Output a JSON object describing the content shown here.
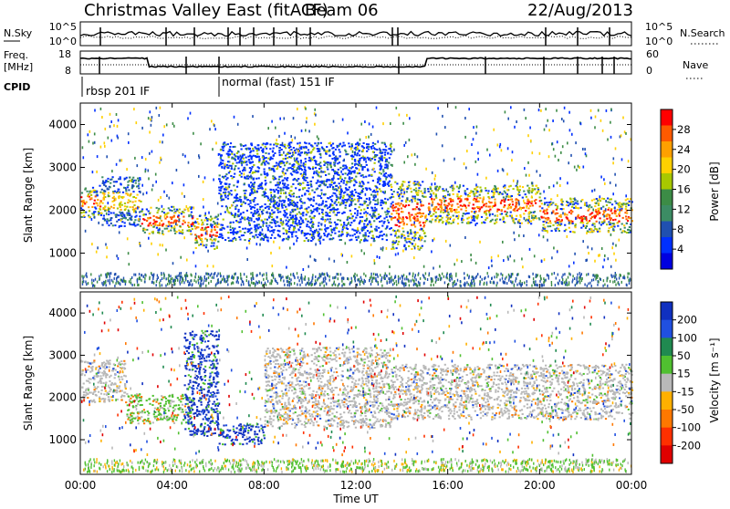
{
  "header": {
    "title": "Christmas Valley East (fitACF)",
    "beam": "Beam 06",
    "date": "22/Aug/2013"
  },
  "status_panels": {
    "nsky": {
      "label": "N.Sky",
      "left_ticks": [
        "10^5",
        "10^0"
      ],
      "right_ticks": [
        "10^5",
        "10^0"
      ],
      "right_label": "N.Search"
    },
    "freq": {
      "label_line1": "Freq.",
      "label_line2": "[MHz]",
      "left_ticks": [
        "18",
        "8"
      ],
      "right_ticks": [
        "60",
        "0"
      ],
      "right_label": "Nave"
    },
    "cpid": {
      "label": "CPID",
      "segments": [
        {
          "name": "rbsp 201 IF",
          "start_hour": 0.0
        },
        {
          "name": "normal (fast) 151 IF",
          "start_hour": 6.0
        }
      ]
    }
  },
  "chart_data": [
    {
      "type": "heatmap",
      "name": "power",
      "ylabel": "Slant Range [km]",
      "yticks": [
        1000,
        2000,
        3000,
        4000
      ],
      "ylim": [
        180,
        4500
      ],
      "xlim_hours": [
        0,
        24
      ],
      "colorbar": {
        "label": "Power [dB]",
        "ticks": [
          "28",
          "24",
          "20",
          "16",
          "12",
          "8",
          "4"
        ],
        "colors": [
          "#ff0000",
          "#ff5a00",
          "#ffa000",
          "#ffd000",
          "#a8c800",
          "#3c8c46",
          "#3c8c64",
          "#2050b0",
          "#0030ff",
          "#0000e0"
        ]
      },
      "echo_bands": [
        {
          "t0": 0.0,
          "t1": 0.9,
          "r0": 1850,
          "r1": 2600,
          "level": "high"
        },
        {
          "t0": 0.9,
          "t1": 2.6,
          "r0": 1650,
          "r1": 2800,
          "level": "mid"
        },
        {
          "t0": 2.6,
          "t1": 4.9,
          "r0": 1450,
          "r1": 2100,
          "level": "high"
        },
        {
          "t0": 4.9,
          "t1": 6.0,
          "r0": 1100,
          "r1": 1900,
          "level": "high"
        },
        {
          "t0": 6.0,
          "t1": 13.5,
          "r0": 1300,
          "r1": 3600,
          "level": "low"
        },
        {
          "t0": 13.5,
          "t1": 15.0,
          "r0": 1100,
          "r1": 2700,
          "level": "high"
        },
        {
          "t0": 15.0,
          "t1": 20.0,
          "r0": 1700,
          "r1": 2600,
          "level": "high"
        },
        {
          "t0": 20.0,
          "t1": 24.0,
          "r0": 1500,
          "r1": 2300,
          "level": "high"
        }
      ]
    },
    {
      "type": "heatmap",
      "name": "velocity",
      "ylabel": "Slant Range [km]",
      "xlabel": "Time UT",
      "xticks": [
        "00:00",
        "04:00",
        "08:00",
        "12:00",
        "16:00",
        "20:00",
        "00:00"
      ],
      "xtick_hours": [
        0,
        4,
        8,
        12,
        16,
        20,
        24
      ],
      "yticks": [
        1000,
        2000,
        3000,
        4000
      ],
      "ylim": [
        180,
        4500
      ],
      "xlim_hours": [
        0,
        24
      ],
      "colorbar": {
        "label": "Velocity [m s⁻¹]",
        "ticks": [
          "200",
          "100",
          "50",
          "15",
          "-15",
          "-50",
          "-100",
          "-200"
        ],
        "colors": [
          "#1030c0",
          "#2050e0",
          "#208a50",
          "#50c030",
          "#b8b8b8",
          "#ffb000",
          "#ff7800",
          "#ff3000",
          "#e00000"
        ]
      },
      "echo_bands": [
        {
          "t0": 0.0,
          "t1": 2.0,
          "r0": 1900,
          "r1": 2900,
          "vel": "grey"
        },
        {
          "t0": 2.0,
          "t1": 4.8,
          "r0": 1400,
          "r1": 2100,
          "vel": "green"
        },
        {
          "t0": 4.5,
          "t1": 6.0,
          "r0": 1100,
          "r1": 3600,
          "vel": "blue"
        },
        {
          "t0": 6.0,
          "t1": 8.0,
          "r0": 900,
          "r1": 1400,
          "vel": "blue"
        },
        {
          "t0": 8.0,
          "t1": 13.5,
          "r0": 1300,
          "r1": 3200,
          "vel": "grey"
        },
        {
          "t0": 13.5,
          "t1": 24.0,
          "r0": 1500,
          "r1": 2800,
          "vel": "grey"
        }
      ]
    }
  ]
}
